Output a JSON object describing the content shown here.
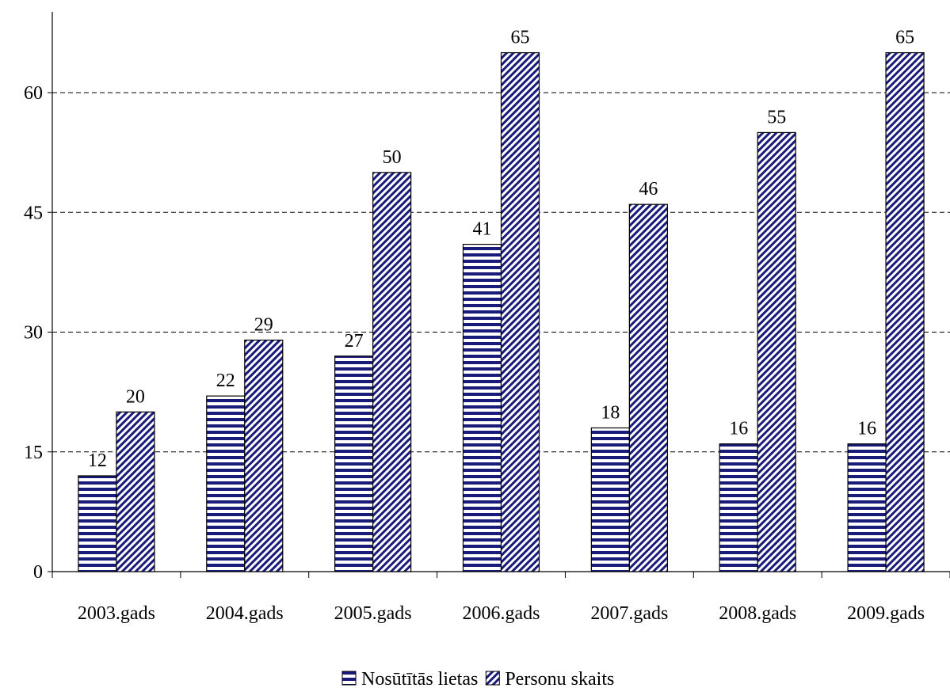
{
  "chart_data": {
    "type": "bar",
    "categories": [
      "2003.gads",
      "2004.gads",
      "2005.gads",
      "2006.gads",
      "2007.gads",
      "2008.gads",
      "2009.gads"
    ],
    "series": [
      {
        "name": "Nosūtītās lietas",
        "values": [
          12,
          22,
          27,
          41,
          18,
          16,
          16
        ],
        "pattern": "horizontal-stripes",
        "color": "#1a1a7a"
      },
      {
        "name": "Personu skaits",
        "values": [
          20,
          29,
          50,
          65,
          46,
          55,
          65
        ],
        "pattern": "diagonal-stripes",
        "color": "#1a1a7a"
      }
    ],
    "y_ticks": [
      "0",
      "15",
      "30",
      "45",
      "60"
    ],
    "ylim": [
      0,
      70
    ],
    "grid": "dashed horizontal",
    "legend_position": "bottom"
  }
}
